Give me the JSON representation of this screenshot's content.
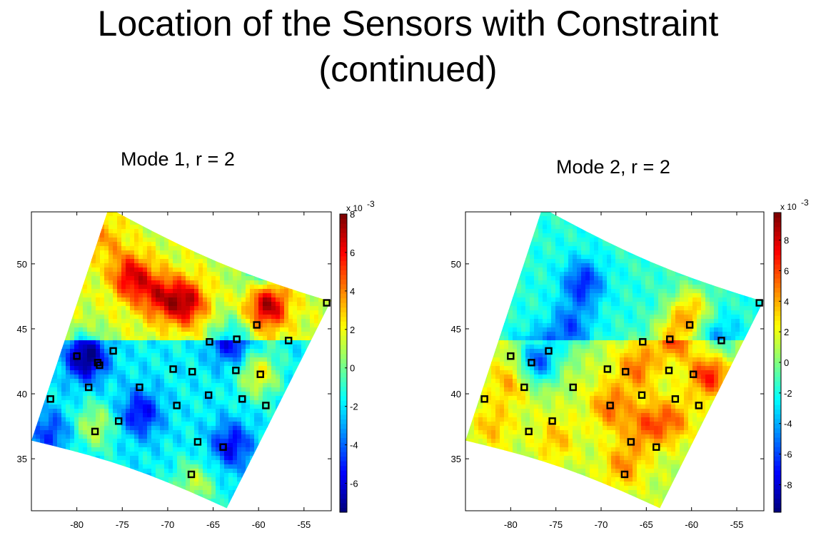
{
  "slide": {
    "title_line1": "Location of the Sensors with Constraint",
    "title_line2": "(continued)"
  },
  "colors": {
    "high": "#7f0000",
    "mid_high": "#ff7f00",
    "neutral": "#b8f05a",
    "mid_low": "#00c8ff",
    "low": "#00007f",
    "sensor_marker": "#000000"
  },
  "chart_data": [
    {
      "type": "heatmap",
      "title": "Mode 1,  r = 2",
      "x_ticks": [
        "-80",
        "-75",
        "-70",
        "-65",
        "-60",
        "-55"
      ],
      "y_ticks": [
        "50",
        "45",
        "40",
        "35"
      ],
      "xlim": [
        -85,
        -52
      ],
      "ylim": [
        31,
        54
      ],
      "colorbar": {
        "multiplier": "x 10",
        "exponent": "-3",
        "ticks": [
          "8",
          "6",
          "4",
          "2",
          "0",
          "-2",
          "-4",
          "-6"
        ],
        "range": [
          -7.5,
          8
        ]
      },
      "field_hotspots": [
        {
          "x": -74,
          "y": 49,
          "v": 5
        },
        {
          "x": -68,
          "y": 47,
          "v": 5.5
        },
        {
          "x": -71,
          "y": 47.5,
          "v": 4
        },
        {
          "x": -59,
          "y": 46.8,
          "v": 6
        },
        {
          "x": -60,
          "y": 49.5,
          "v": -3
        },
        {
          "x": -79,
          "y": 42.8,
          "v": -6
        },
        {
          "x": -60,
          "y": 41.5,
          "v": 4
        },
        {
          "x": -78,
          "y": 37.5,
          "v": 3
        },
        {
          "x": -73,
          "y": 38.5,
          "v": -4
        },
        {
          "x": -63,
          "y": 36,
          "v": -4
        },
        {
          "x": -67,
          "y": 33,
          "v": 3
        },
        {
          "x": -63,
          "y": 44,
          "v": -4
        },
        {
          "x": -83,
          "y": 37,
          "v": -3
        },
        {
          "x": -77,
          "y": 52,
          "v": 2
        }
      ],
      "sensors": [
        {
          "x": -82.9,
          "y": 39.6
        },
        {
          "x": -80.0,
          "y": 42.9
        },
        {
          "x": -78.7,
          "y": 40.5
        },
        {
          "x": -77.7,
          "y": 42.4
        },
        {
          "x": -77.5,
          "y": 42.2
        },
        {
          "x": -76.0,
          "y": 43.3
        },
        {
          "x": -78.0,
          "y": 37.1
        },
        {
          "x": -75.4,
          "y": 37.9
        },
        {
          "x": -73.1,
          "y": 40.5
        },
        {
          "x": -69.4,
          "y": 41.9
        },
        {
          "x": -67.3,
          "y": 41.7
        },
        {
          "x": -69.0,
          "y": 39.1
        },
        {
          "x": -65.5,
          "y": 39.9
        },
        {
          "x": -65.4,
          "y": 44.0
        },
        {
          "x": -62.4,
          "y": 44.2
        },
        {
          "x": -60.2,
          "y": 45.3
        },
        {
          "x": -62.5,
          "y": 41.8
        },
        {
          "x": -61.8,
          "y": 39.6
        },
        {
          "x": -59.8,
          "y": 41.5
        },
        {
          "x": -59.2,
          "y": 39.1
        },
        {
          "x": -56.7,
          "y": 44.1
        },
        {
          "x": -66.7,
          "y": 36.3
        },
        {
          "x": -63.9,
          "y": 35.9
        },
        {
          "x": -67.4,
          "y": 33.8
        },
        {
          "x": -52.5,
          "y": 47.0
        }
      ]
    },
    {
      "type": "heatmap",
      "title": "Mode 2,  r = 2",
      "x_ticks": [
        "-80",
        "-75",
        "-70",
        "-65",
        "-60",
        "-55"
      ],
      "y_ticks": [
        "50",
        "45",
        "40",
        "35"
      ],
      "xlim": [
        -85,
        -52
      ],
      "ylim": [
        31,
        54
      ],
      "colorbar": {
        "multiplier": "x 10",
        "exponent": "-3",
        "ticks": [
          "8",
          "6",
          "4",
          "2",
          "0",
          "-2",
          "-4",
          "-6",
          "-8"
        ],
        "range": [
          -9.8,
          9.8
        ]
      },
      "field_hotspots": [
        {
          "x": -72,
          "y": 48.5,
          "v": -5
        },
        {
          "x": -73.5,
          "y": 45,
          "v": -4
        },
        {
          "x": -77,
          "y": 42.5,
          "v": -7
        },
        {
          "x": -62,
          "y": 44.5,
          "v": 5
        },
        {
          "x": -58,
          "y": 41.5,
          "v": 6
        },
        {
          "x": -66,
          "y": 42,
          "v": 4
        },
        {
          "x": -80,
          "y": 41,
          "v": 3
        },
        {
          "x": -69,
          "y": 39,
          "v": 4
        },
        {
          "x": -65,
          "y": 37.5,
          "v": 4
        },
        {
          "x": -62,
          "y": 38,
          "v": 3.5
        },
        {
          "x": -67.5,
          "y": 34.5,
          "v": 3.5
        },
        {
          "x": -60,
          "y": 46.5,
          "v": 5
        },
        {
          "x": -82,
          "y": 37.5,
          "v": 2.5
        },
        {
          "x": -75,
          "y": 36.5,
          "v": 2.5
        },
        {
          "x": -64,
          "y": 50,
          "v": 0.5
        },
        {
          "x": -57,
          "y": 44,
          "v": -3
        }
      ],
      "sensors": [
        {
          "x": -82.9,
          "y": 39.6
        },
        {
          "x": -80.0,
          "y": 42.9
        },
        {
          "x": -78.5,
          "y": 40.5
        },
        {
          "x": -77.7,
          "y": 42.4
        },
        {
          "x": -75.8,
          "y": 43.3
        },
        {
          "x": -78.0,
          "y": 37.1
        },
        {
          "x": -75.4,
          "y": 37.9
        },
        {
          "x": -73.1,
          "y": 40.5
        },
        {
          "x": -69.3,
          "y": 41.9
        },
        {
          "x": -67.3,
          "y": 41.7
        },
        {
          "x": -69.0,
          "y": 39.1
        },
        {
          "x": -65.5,
          "y": 39.9
        },
        {
          "x": -65.4,
          "y": 44.0
        },
        {
          "x": -62.4,
          "y": 44.2
        },
        {
          "x": -60.2,
          "y": 45.3
        },
        {
          "x": -62.5,
          "y": 41.8
        },
        {
          "x": -61.8,
          "y": 39.6
        },
        {
          "x": -59.8,
          "y": 41.5
        },
        {
          "x": -59.2,
          "y": 39.1
        },
        {
          "x": -56.7,
          "y": 44.1
        },
        {
          "x": -66.7,
          "y": 36.3
        },
        {
          "x": -63.9,
          "y": 35.9
        },
        {
          "x": -67.4,
          "y": 33.8
        },
        {
          "x": -52.5,
          "y": 47.0
        }
      ]
    }
  ]
}
